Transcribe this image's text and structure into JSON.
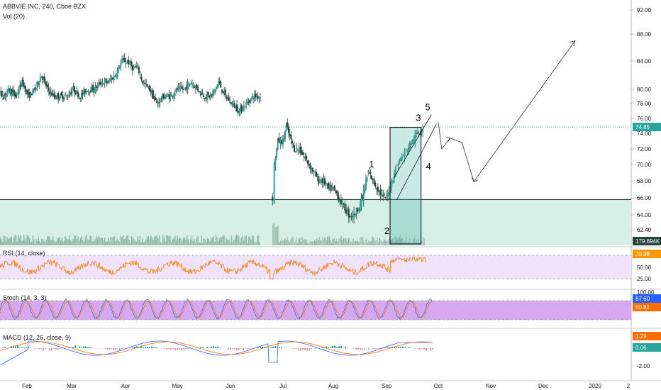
{
  "header": {
    "title": "ABBVIE INC, 240, Cboe BZX",
    "volume_label": "Vol (20)"
  },
  "price_axis_ticks": [
    "92.00",
    "88.00",
    "84.00",
    "80.00",
    "78.00",
    "76.00",
    "74.00",
    "72.00",
    "70.00",
    "68.00",
    "66.00",
    "64.00",
    "62.40"
  ],
  "price_tick_values": [
    92,
    88,
    84,
    80,
    78,
    76,
    74,
    72,
    70,
    68,
    66,
    64,
    62.4
  ],
  "last_price": "74.85",
  "volume_last": "179.694K",
  "rsi": {
    "label": "RSI (14, close)",
    "value": "70.98",
    "ticks": [
      "75.00",
      "50.00",
      "25.00"
    ]
  },
  "stoch": {
    "label": "Stoch (14, 3, 3)",
    "value1": "87.60",
    "value2": "80.81",
    "ticks": [
      "100.00"
    ]
  },
  "macd": {
    "label": "MACD (12, 26, close, 9)",
    "value1": "1.29",
    "value2": "0.06",
    "ticks": [
      "-2.00"
    ]
  },
  "x_axis_labels": [
    "Feb",
    "Mar",
    "Apr",
    "May",
    "Jun",
    "Jul",
    "Aug",
    "Sep",
    "Oct",
    "Nov",
    "Dec",
    "2020",
    "2"
  ],
  "wave_labels": [
    "1",
    "2",
    "3",
    "4",
    "5"
  ],
  "colors": {
    "up": "#26a69a",
    "down": "#ef5350",
    "candle": "#26443c",
    "zone": "#d5efe6",
    "rsi": "#f57c00",
    "rsi_band": "#f1e2fb",
    "stoch_k": "#3f6fd8",
    "stoch_d": "#f57c00",
    "stoch_band": "#d6a8ef",
    "macd": "#2962ff",
    "signal": "#ff6d00",
    "label_bg": "#26a69a",
    "label_rsi": "#ff9800",
    "label_stoch_k": "#2962ff",
    "label_stoch_d": "#ff6d00"
  },
  "chart_data": {
    "type": "candlestick",
    "symbol": "ABBVIE INC",
    "interval": "240",
    "exchange": "Cboe BZX",
    "price_ylim": [
      62.4,
      92.0
    ],
    "segments": [
      {
        "from": "Jan",
        "to": "Jun",
        "price_range": [
          75.5,
          89.5
        ]
      },
      {
        "from": "Jun 25",
        "to": "Oct 1",
        "price_range": [
          62.4,
          75.2
        ]
      }
    ],
    "support_level": 65.8,
    "resistance_dotted": 74.85,
    "last_price": 74.85,
    "wave_points": [
      {
        "label": "1",
        "approx_date": "Aug 23",
        "price": 69.3
      },
      {
        "label": "2",
        "approx_date": "Sep 1",
        "price": 63.0
      },
      {
        "label": "3",
        "approx_date": "Sep 20",
        "price": 75.5
      },
      {
        "label": "4",
        "approx_date": "Sep 23",
        "price": 70.1
      },
      {
        "label": "5",
        "approx_date": "Sep 25",
        "price": 76.8
      }
    ],
    "projection_path": [
      {
        "date": "Oct 1",
        "price": 75.5
      },
      {
        "date": "Oct 3",
        "price": 72.0
      },
      {
        "date": "Oct 8",
        "price": 73.4
      },
      {
        "date": "Oct 15",
        "price": 72.8
      },
      {
        "date": "Oct 22",
        "price": 67.9
      },
      {
        "date": "Dec 20",
        "price": 87.0
      }
    ]
  }
}
